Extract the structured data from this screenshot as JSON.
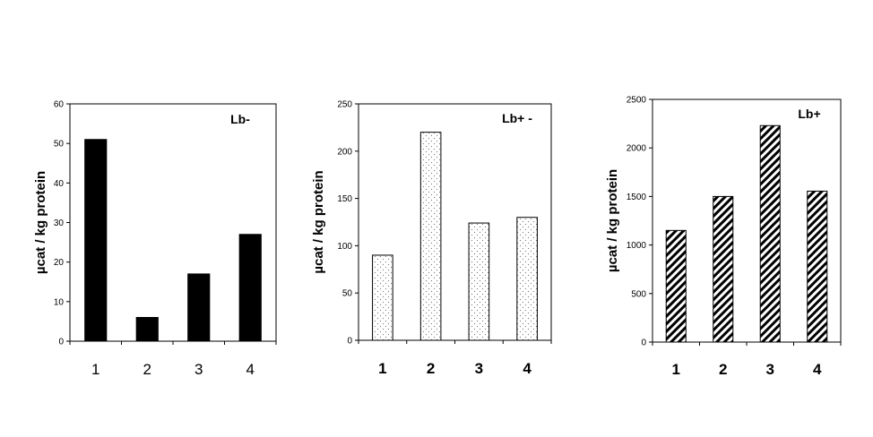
{
  "chart_data": [
    {
      "type": "bar",
      "title": "Lb-",
      "ylabel": "µcat / kg protein",
      "categories": [
        "1",
        "2",
        "3",
        "4"
      ],
      "values": [
        51,
        6,
        17,
        27
      ],
      "ylim": [
        0,
        60
      ],
      "yticks": [
        0,
        10,
        20,
        30,
        40,
        50,
        60
      ],
      "fill": "solid black",
      "grid": false
    },
    {
      "type": "bar",
      "title": "Lb+ -",
      "ylabel": "µcat / kg protein",
      "categories": [
        "1",
        "2",
        "3",
        "4"
      ],
      "values": [
        90,
        220,
        124,
        130
      ],
      "ylim": [
        0,
        250
      ],
      "yticks": [
        0,
        50,
        100,
        150,
        200,
        250
      ],
      "fill": "dotted",
      "grid": false
    },
    {
      "type": "bar",
      "title": "Lb+",
      "ylabel": "µcat / kg protein",
      "categories": [
        "1",
        "2",
        "3",
        "4"
      ],
      "values": [
        1150,
        1500,
        2230,
        1555
      ],
      "ylim": [
        0,
        2500
      ],
      "yticks": [
        0,
        500,
        1000,
        1500,
        2000,
        2500
      ],
      "fill": "diagonal hatch",
      "grid": false
    }
  ]
}
